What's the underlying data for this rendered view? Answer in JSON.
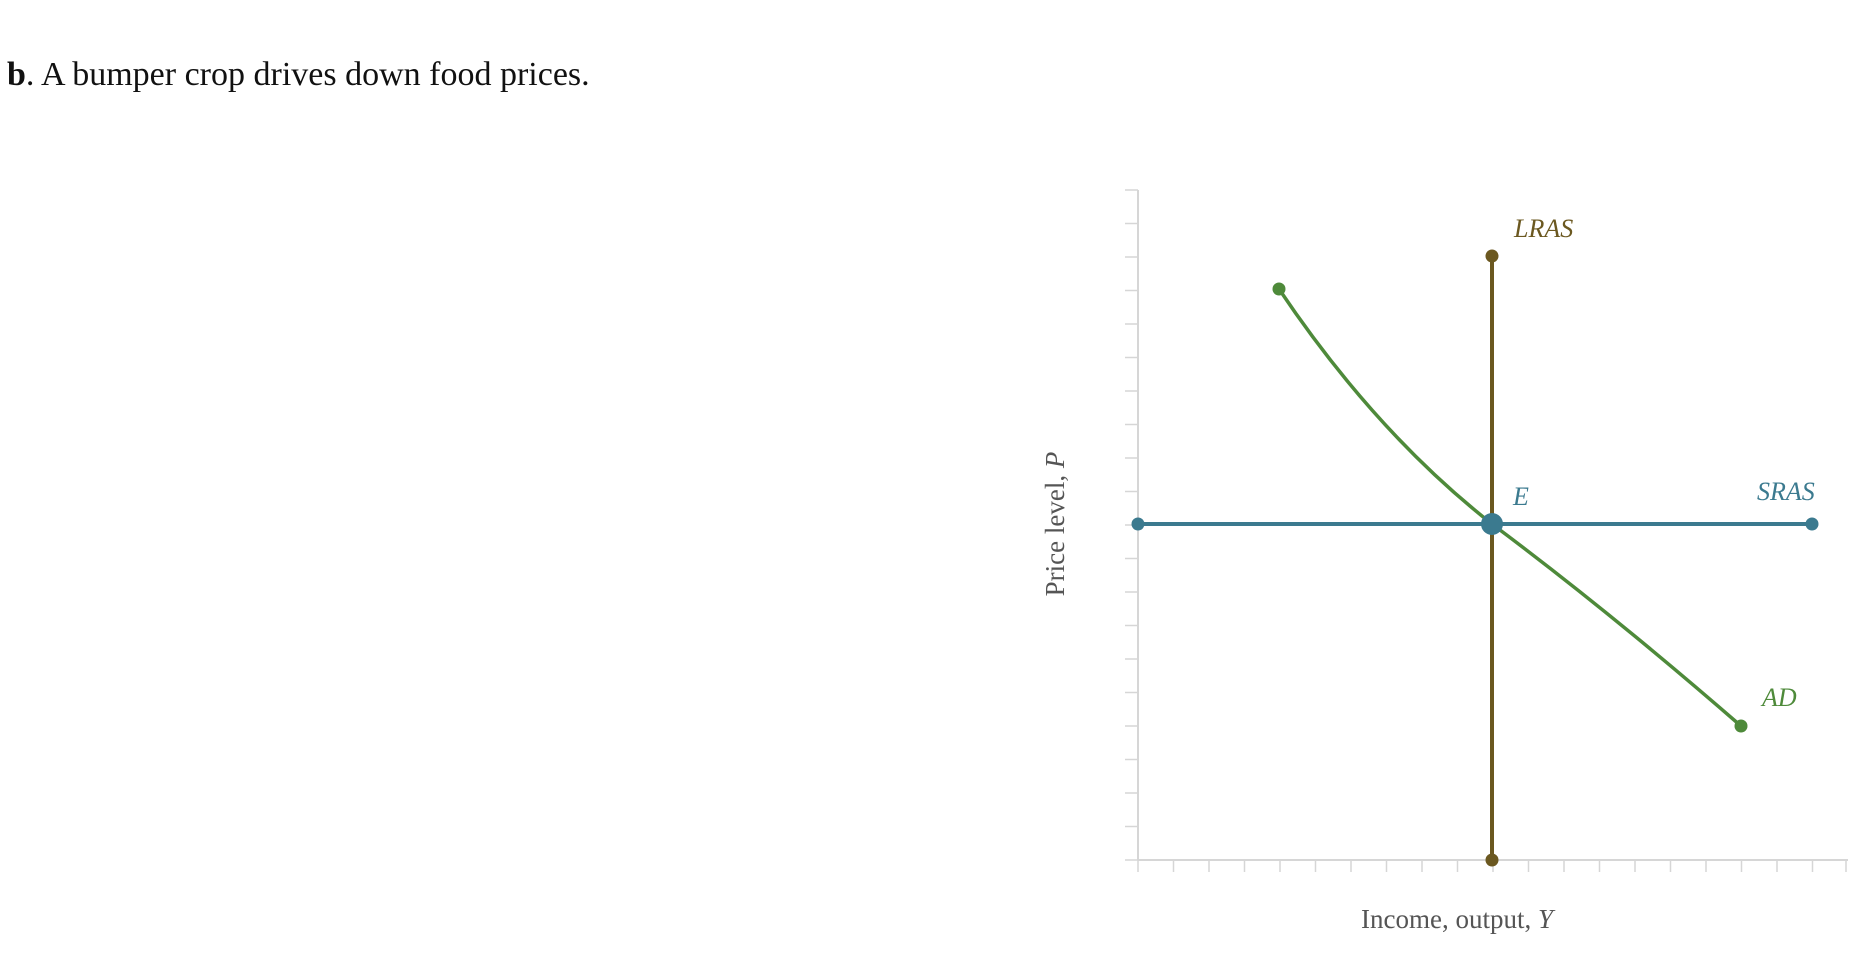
{
  "question": {
    "label": "b",
    "text": ". A bumper crop drives down food prices."
  },
  "diagram": {
    "x_axis": {
      "label": "Income, output,",
      "symbol": "Y"
    },
    "y_axis": {
      "label": "Price level,",
      "symbol": "P"
    },
    "curves": {
      "lras": "LRAS",
      "sras": "SRAS",
      "ad": "AD"
    },
    "equilibrium": "E"
  }
}
